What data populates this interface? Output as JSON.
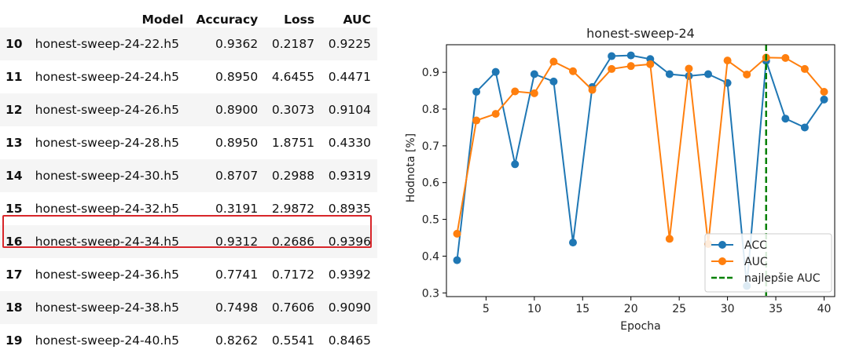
{
  "table": {
    "headers": {
      "model": "Model",
      "accuracy": "Accuracy",
      "loss": "Loss",
      "auc": "AUC"
    },
    "rows": [
      {
        "idx": "10",
        "model": "honest-sweep-24-22.h5",
        "accuracy": "0.9362",
        "loss": "0.2187",
        "auc": "0.9225"
      },
      {
        "idx": "11",
        "model": "honest-sweep-24-24.h5",
        "accuracy": "0.8950",
        "loss": "4.6455",
        "auc": "0.4471"
      },
      {
        "idx": "12",
        "model": "honest-sweep-24-26.h5",
        "accuracy": "0.8900",
        "loss": "0.3073",
        "auc": "0.9104"
      },
      {
        "idx": "13",
        "model": "honest-sweep-24-28.h5",
        "accuracy": "0.8950",
        "loss": "1.8751",
        "auc": "0.4330"
      },
      {
        "idx": "14",
        "model": "honest-sweep-24-30.h5",
        "accuracy": "0.8707",
        "loss": "0.2988",
        "auc": "0.9319"
      },
      {
        "idx": "15",
        "model": "honest-sweep-24-32.h5",
        "accuracy": "0.3191",
        "loss": "2.9872",
        "auc": "0.8935"
      },
      {
        "idx": "16",
        "model": "honest-sweep-24-34.h5",
        "accuracy": "0.9312",
        "loss": "0.2686",
        "auc": "0.9396"
      },
      {
        "idx": "17",
        "model": "honest-sweep-24-36.h5",
        "accuracy": "0.7741",
        "loss": "0.7172",
        "auc": "0.9392"
      },
      {
        "idx": "18",
        "model": "honest-sweep-24-38.h5",
        "accuracy": "0.7498",
        "loss": "0.7606",
        "auc": "0.9090"
      },
      {
        "idx": "19",
        "model": "honest-sweep-24-40.h5",
        "accuracy": "0.8262",
        "loss": "0.5541",
        "auc": "0.8465"
      }
    ],
    "highlighted_row": "16",
    "highlight_color": "#d8262a"
  },
  "chart_data": {
    "type": "line",
    "title": "honest-sweep-24",
    "xlabel": "Epocha",
    "ylabel": "Hodnota [%]",
    "xlim": [
      0.9,
      41.1
    ],
    "ylim": [
      0.29,
      0.975
    ],
    "xticks": [
      5,
      10,
      15,
      20,
      25,
      30,
      35,
      40
    ],
    "yticks": [
      0.3,
      0.4,
      0.5,
      0.6,
      0.7,
      0.8,
      0.9
    ],
    "x": [
      2,
      4,
      6,
      8,
      10,
      12,
      14,
      16,
      18,
      20,
      22,
      24,
      26,
      28,
      30,
      32,
      34,
      36,
      38,
      40
    ],
    "series": [
      {
        "name": "ACC",
        "color": "#1f77b4",
        "values": [
          0.389,
          0.847,
          0.901,
          0.65,
          0.895,
          0.875,
          0.437,
          0.86,
          0.944,
          0.946,
          0.936,
          0.895,
          0.89,
          0.895,
          0.871,
          0.319,
          0.931,
          0.774,
          0.75,
          0.826
        ]
      },
      {
        "name": "AUC",
        "color": "#ff7f0e",
        "values": [
          0.461,
          0.769,
          0.787,
          0.848,
          0.843,
          0.929,
          0.903,
          0.852,
          0.909,
          0.917,
          0.922,
          0.447,
          0.91,
          0.433,
          0.932,
          0.894,
          0.94,
          0.939,
          0.909,
          0.847
        ]
      }
    ],
    "vline": {
      "x": 34,
      "name": "najlepšie AUC",
      "color": "#008000"
    },
    "legend": "lower right",
    "grid": false
  }
}
